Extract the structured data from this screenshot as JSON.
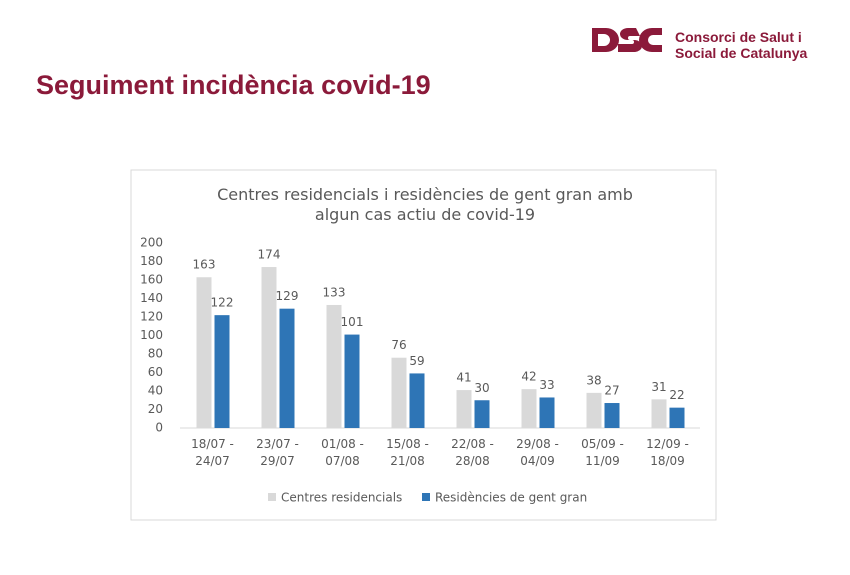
{
  "header": {
    "org_line1": "Consorci de Salut i",
    "org_line2": "Social de Catalunya",
    "title": "Seguiment incidència covid-19"
  },
  "chart_data": {
    "type": "bar",
    "title": "Centres residencials i residències de gent gran amb algun cas actiu de covid-19",
    "categories": [
      "18/07 - 24/07",
      "23/07 - 29/07",
      "01/08 - 07/08",
      "15/08 - 21/08",
      "22/08 - 28/08",
      "29/08 - 04/09",
      "05/09 - 11/09",
      "12/09 - 18/09"
    ],
    "series": [
      {
        "name": "Centres residencials",
        "color": "#d9d9d9",
        "values": [
          163,
          174,
          133,
          76,
          41,
          42,
          38,
          31
        ]
      },
      {
        "name": "Residències de gent gran",
        "color": "#2e75b6",
        "values": [
          122,
          129,
          101,
          59,
          30,
          33,
          27,
          22
        ]
      }
    ],
    "ylim": [
      0,
      200
    ],
    "yticks": [
      0,
      20,
      40,
      60,
      80,
      100,
      120,
      140,
      160,
      180,
      200
    ],
    "grid": false,
    "legend": "bottom"
  }
}
